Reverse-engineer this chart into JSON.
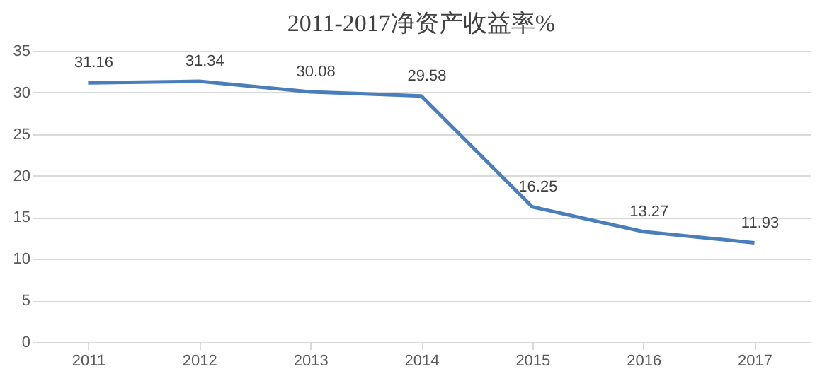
{
  "chart_data": {
    "type": "line",
    "title": "2011-2017净资产收益率%",
    "categories": [
      "2011",
      "2012",
      "2013",
      "2014",
      "2015",
      "2016",
      "2017"
    ],
    "series": [
      {
        "color": "#4a7ebb",
        "values": [
          31.16,
          31.34,
          30.08,
          29.58,
          16.25,
          13.27,
          11.93
        ]
      }
    ],
    "ylim": [
      0,
      35
    ],
    "yticks": [
      0,
      5,
      10,
      15,
      20,
      25,
      30,
      35
    ],
    "grid": "y",
    "data_labels": true,
    "marker": "none",
    "line_style": "solid"
  }
}
